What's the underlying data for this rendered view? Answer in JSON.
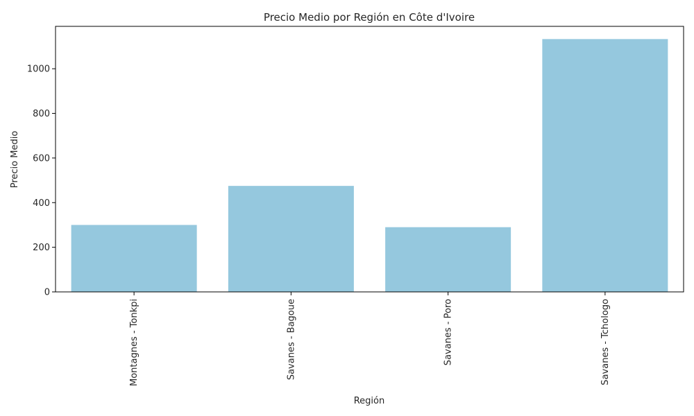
{
  "chart_data": {
    "type": "bar",
    "title": "Precio Medio por Región en Côte d'Ivoire",
    "xlabel": "Región",
    "ylabel": "Precio Medio",
    "categories": [
      "Montagnes - Tonkpi",
      "Savanes - Bagoue",
      "Savanes - Poro",
      "Savanes - Tchologo"
    ],
    "values": [
      300,
      475,
      290,
      1133
    ],
    "ylim": [
      0,
      1190
    ],
    "yticks": [
      0,
      200,
      400,
      600,
      800,
      1000
    ],
    "grid": false,
    "bar_color": "#95c8de",
    "xtick_rotation": "vertical"
  }
}
